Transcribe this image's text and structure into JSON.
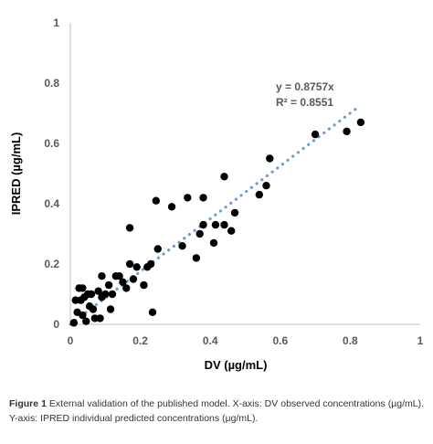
{
  "chart_data": {
    "type": "scatter",
    "xlabel": "DV (µg/mL)",
    "ylabel": "IPRED (µg/mL)",
    "xlim": [
      0,
      1
    ],
    "ylim": [
      0,
      1
    ],
    "xticks": [
      "0",
      "0.2",
      "0.4",
      "0.6",
      "0.8",
      "1"
    ],
    "yticks": [
      "0",
      "0.2",
      "0.4",
      "0.6",
      "0.8",
      "1"
    ],
    "grid": false,
    "legend": "none",
    "trendline": {
      "slope": 0.8757,
      "equation": "y = 0.8757x",
      "r2": "R² = 0.8551",
      "style": "dotted"
    },
    "colors": {
      "points": "#000000",
      "trendline": "#6f9bd1"
    },
    "points": [
      [
        0.01,
        0.005
      ],
      [
        0.015,
        0.08
      ],
      [
        0.02,
        0.04
      ],
      [
        0.025,
        0.12
      ],
      [
        0.03,
        0.08
      ],
      [
        0.035,
        0.12
      ],
      [
        0.035,
        0.03
      ],
      [
        0.04,
        0.09
      ],
      [
        0.045,
        0.01
      ],
      [
        0.05,
        0.1
      ],
      [
        0.055,
        0.06
      ],
      [
        0.06,
        0.1
      ],
      [
        0.065,
        0.05
      ],
      [
        0.07,
        0.02
      ],
      [
        0.08,
        0.11
      ],
      [
        0.085,
        0.02
      ],
      [
        0.09,
        0.09
      ],
      [
        0.09,
        0.16
      ],
      [
        0.1,
        0.1
      ],
      [
        0.11,
        0.13
      ],
      [
        0.115,
        0.05
      ],
      [
        0.12,
        0.1
      ],
      [
        0.13,
        0.16
      ],
      [
        0.14,
        0.16
      ],
      [
        0.15,
        0.14
      ],
      [
        0.16,
        0.12
      ],
      [
        0.17,
        0.2
      ],
      [
        0.17,
        0.32
      ],
      [
        0.18,
        0.15
      ],
      [
        0.19,
        0.19
      ],
      [
        0.21,
        0.13
      ],
      [
        0.22,
        0.19
      ],
      [
        0.23,
        0.2
      ],
      [
        0.235,
        0.04
      ],
      [
        0.245,
        0.41
      ],
      [
        0.25,
        0.25
      ],
      [
        0.29,
        0.39
      ],
      [
        0.32,
        0.26
      ],
      [
        0.335,
        0.42
      ],
      [
        0.36,
        0.22
      ],
      [
        0.37,
        0.3
      ],
      [
        0.38,
        0.33
      ],
      [
        0.38,
        0.42
      ],
      [
        0.41,
        0.27
      ],
      [
        0.415,
        0.33
      ],
      [
        0.44,
        0.49
      ],
      [
        0.44,
        0.33
      ],
      [
        0.46,
        0.31
      ],
      [
        0.47,
        0.37
      ],
      [
        0.54,
        0.43
      ],
      [
        0.56,
        0.46
      ],
      [
        0.57,
        0.55
      ],
      [
        0.7,
        0.63
      ],
      [
        0.79,
        0.64
      ],
      [
        0.83,
        0.67
      ]
    ]
  },
  "caption": {
    "label": "Figure 1",
    "text": "External validation of the published model. X-axis: DV observed concentrations (µg/mL). Y-axis: IPRED individual predicted concentrations (µg/mL)."
  }
}
